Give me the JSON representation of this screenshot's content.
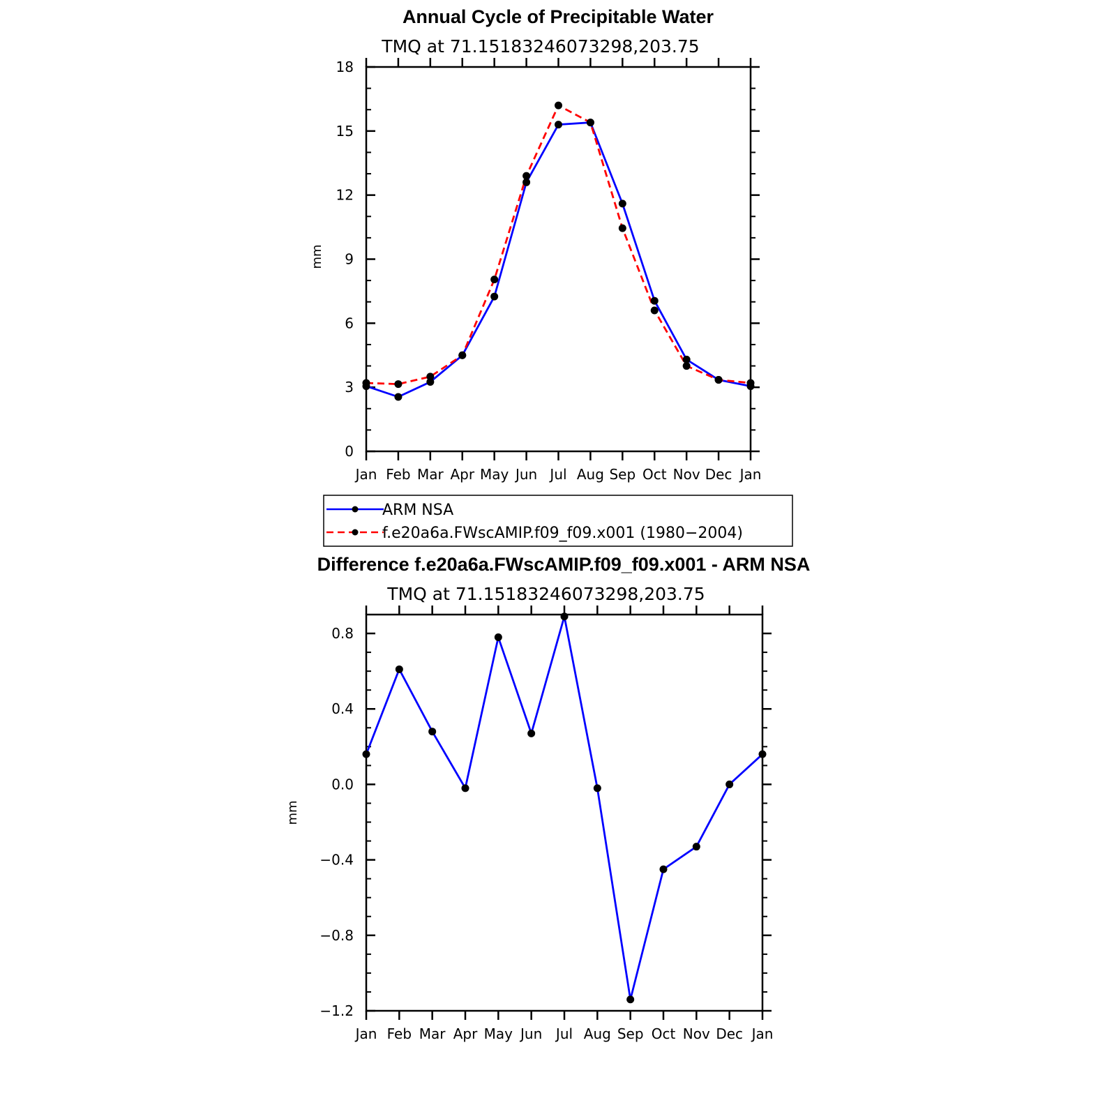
{
  "chart_data": [
    {
      "type": "line",
      "title": "Annual Cycle of Precipitable Water",
      "subtitle": "TMQ at 71.15183246073298,203.75",
      "xlabel": "",
      "ylabel": "mm",
      "categories": [
        "Jan",
        "Feb",
        "Mar",
        "Apr",
        "May",
        "Jun",
        "Jul",
        "Aug",
        "Sep",
        "Oct",
        "Nov",
        "Dec",
        "Jan"
      ],
      "ylim": [
        0,
        18
      ],
      "yticks": [
        0,
        3,
        6,
        9,
        12,
        15,
        18
      ],
      "ytick_labels": [
        "0",
        "3",
        "6",
        "9",
        "12",
        "15",
        "18"
      ],
      "grid": false,
      "legend_position": "bottom",
      "series": [
        {
          "name": "ARM NSA",
          "color": "#0000ff",
          "dash": "solid",
          "values": [
            3.05,
            2.55,
            3.25,
            4.5,
            7.25,
            12.6,
            15.3,
            15.4,
            11.6,
            7.05,
            4.3,
            3.35,
            3.05
          ]
        },
        {
          "name": "f.e20a6a.FWscAMIP.f09_f09.x001 (1980-2004)",
          "color": "#ff0000",
          "dash": "dashed",
          "values": [
            3.2,
            3.15,
            3.5,
            4.5,
            8.05,
            12.9,
            16.2,
            15.4,
            10.45,
            6.6,
            4.0,
            3.35,
            3.2
          ]
        }
      ]
    },
    {
      "type": "line",
      "title": "Difference f.e20a6a.FWscAMIP.f09_f09.x001 - ARM NSA",
      "subtitle": "TMQ at 71.15183246073298,203.75",
      "xlabel": "",
      "ylabel": "mm",
      "categories": [
        "Jan",
        "Feb",
        "Mar",
        "Apr",
        "May",
        "Jun",
        "Jul",
        "Aug",
        "Sep",
        "Oct",
        "Nov",
        "Dec",
        "Jan"
      ],
      "ylim": [
        -1.2,
        0.9
      ],
      "yticks": [
        -1.2,
        -0.8,
        -0.4,
        0.0,
        0.4,
        0.8
      ],
      "ytick_labels": [
        "−1.2",
        "−0.8",
        "−0.4",
        "0.0",
        "0.4",
        "0.8"
      ],
      "grid": false,
      "series": [
        {
          "name": "Difference",
          "color": "#0000ff",
          "dash": "solid",
          "values": [
            0.16,
            0.61,
            0.28,
            -0.02,
            0.78,
            0.27,
            0.89,
            -0.02,
            -1.14,
            -0.45,
            -0.33,
            0.0,
            0.16
          ]
        }
      ]
    }
  ],
  "legend": {
    "items": [
      {
        "label": "ARM NSA",
        "color": "#0000ff",
        "dash": "solid"
      },
      {
        "label": "f.e20a6a.FWscAMIP.f09_f09.x001 (1980−2004)",
        "color": "#ff0000",
        "dash": "dashed"
      }
    ]
  }
}
